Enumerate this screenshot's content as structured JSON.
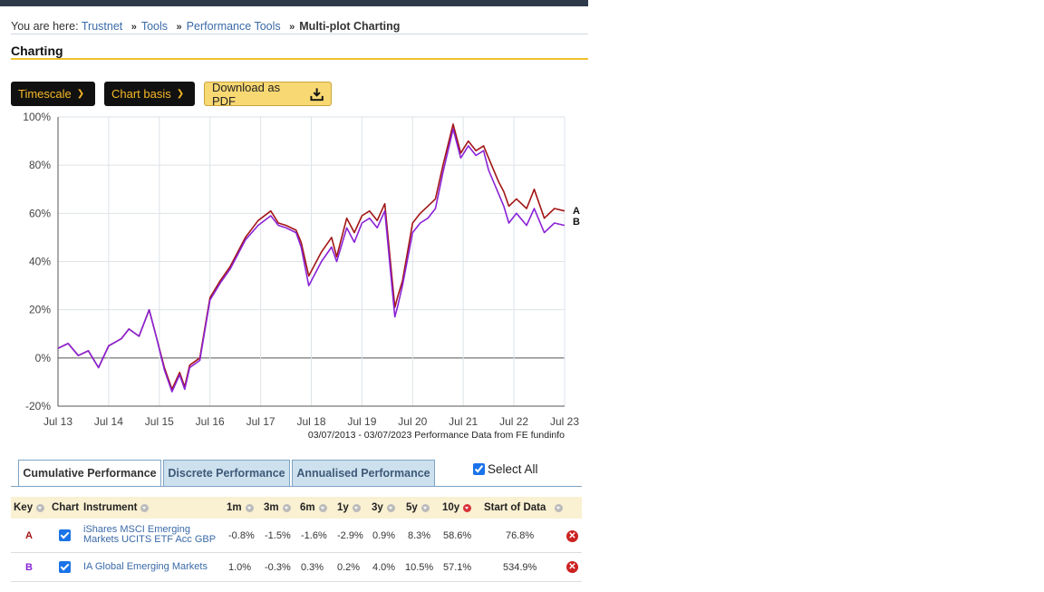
{
  "breadcrumb": {
    "prefix": "You are here:",
    "items": [
      "Trustnet",
      "Tools",
      "Performance Tools"
    ],
    "separator": "»",
    "current": "Multi-plot Charting"
  },
  "page_title": "Charting",
  "toolbar": {
    "timescale_label": "Timescale",
    "chart_basis_label": "Chart basis",
    "download_label": "Download as PDF"
  },
  "chart_data": {
    "type": "line",
    "x_ticks": [
      "Jul 13",
      "Jul 14",
      "Jul 15",
      "Jul 16",
      "Jul 17",
      "Jul 18",
      "Jul 19",
      "Jul 20",
      "Jul 21",
      "Jul 22",
      "Jul 23"
    ],
    "y_ticks": [
      "100%",
      "80%",
      "60%",
      "40%",
      "20%",
      "0%",
      "-20%"
    ],
    "ylim": [
      -20,
      100
    ],
    "grid": true,
    "source_note": "03/07/2013 - 03/07/2023 Performance Data from FE fundinfo",
    "end_labels": [
      "A",
      "B"
    ],
    "series": [
      {
        "key": "A",
        "color": "#a31515",
        "x": [
          2013.5,
          2013.7,
          2013.9,
          2014.1,
          2014.3,
          2014.5,
          2014.75,
          2014.9,
          2015.1,
          2015.3,
          2015.45,
          2015.6,
          2015.75,
          2015.9,
          2016.0,
          2016.1,
          2016.3,
          2016.5,
          2016.7,
          2016.9,
          2017.2,
          2017.45,
          2017.7,
          2017.85,
          2018.0,
          2018.2,
          2018.3,
          2018.45,
          2018.7,
          2018.9,
          2019.0,
          2019.2,
          2019.35,
          2019.5,
          2019.65,
          2019.8,
          2019.95,
          2020.15,
          2020.2,
          2020.3,
          2020.5,
          2020.65,
          2020.8,
          2020.95,
          2021.1,
          2021.3,
          2021.45,
          2021.6,
          2021.75,
          2021.9,
          2022.0,
          2022.2,
          2022.3,
          2022.4,
          2022.55,
          2022.75,
          2022.9,
          2023.1,
          2023.3,
          2023.5
        ],
        "y": [
          4,
          6,
          1,
          3,
          -4,
          5,
          8,
          12,
          9,
          20,
          8,
          -4,
          -13,
          -6,
          -12,
          -3,
          0,
          25,
          32,
          38,
          50,
          57,
          61,
          56,
          55,
          53,
          48,
          34,
          44,
          50,
          42,
          58,
          52,
          59,
          61,
          57,
          64,
          21,
          25,
          32,
          56,
          60,
          63,
          66,
          80,
          97,
          85,
          90,
          86,
          88,
          83,
          73,
          69,
          63,
          66,
          62,
          70,
          58,
          62,
          61
        ]
      },
      {
        "key": "B",
        "color": "#8a22d6",
        "x": [
          2013.5,
          2013.7,
          2013.9,
          2014.1,
          2014.3,
          2014.5,
          2014.75,
          2014.9,
          2015.1,
          2015.3,
          2015.45,
          2015.6,
          2015.75,
          2015.9,
          2016.0,
          2016.1,
          2016.3,
          2016.5,
          2016.7,
          2016.9,
          2017.2,
          2017.45,
          2017.7,
          2017.85,
          2018.0,
          2018.2,
          2018.3,
          2018.45,
          2018.7,
          2018.9,
          2019.0,
          2019.2,
          2019.35,
          2019.5,
          2019.65,
          2019.8,
          2019.95,
          2020.15,
          2020.2,
          2020.3,
          2020.5,
          2020.65,
          2020.8,
          2020.95,
          2021.1,
          2021.3,
          2021.45,
          2021.6,
          2021.75,
          2021.9,
          2022.0,
          2022.2,
          2022.3,
          2022.4,
          2022.55,
          2022.75,
          2022.9,
          2023.1,
          2023.3,
          2023.5
        ],
        "y": [
          4,
          6,
          1,
          3,
          -4,
          5,
          8,
          12,
          9,
          20,
          8,
          -5,
          -14,
          -7,
          -13,
          -4,
          -1,
          24,
          31,
          37,
          49,
          55,
          59,
          55,
          54,
          52,
          46,
          30,
          40,
          46,
          40,
          54,
          48,
          56,
          58,
          54,
          61,
          17,
          21,
          30,
          52,
          56,
          58,
          62,
          77,
          95,
          83,
          88,
          84,
          86,
          78,
          68,
          63,
          56,
          60,
          55,
          62,
          52,
          56,
          55
        ]
      }
    ]
  },
  "tabs": [
    "Cumulative Performance",
    "Discrete Performance",
    "Annualised Performance"
  ],
  "select_all_label": "Select All",
  "table": {
    "headers": [
      "Key",
      "Chart",
      "Instrument",
      "1m",
      "3m",
      "6m",
      "1y",
      "3y",
      "5y",
      "10y",
      "Start of Data"
    ],
    "rows": [
      {
        "key": "A",
        "key_color": "#a31515",
        "instrument_line1": "iShares MSCI Emerging",
        "instrument_line2": "Markets UCITS ETF Acc GBP",
        "values": [
          "-0.8%",
          "-1.5%",
          "-1.6%",
          "-2.9%",
          "0.9%",
          "8.3%",
          "58.6%",
          "76.8%"
        ]
      },
      {
        "key": "B",
        "key_color": "#8a22d6",
        "instrument_line1": "IA Global Emerging Markets",
        "instrument_line2": "",
        "values": [
          "1.0%",
          "-0.3%",
          "0.3%",
          "0.2%",
          "4.0%",
          "10.5%",
          "57.1%",
          "534.9%"
        ]
      }
    ]
  }
}
